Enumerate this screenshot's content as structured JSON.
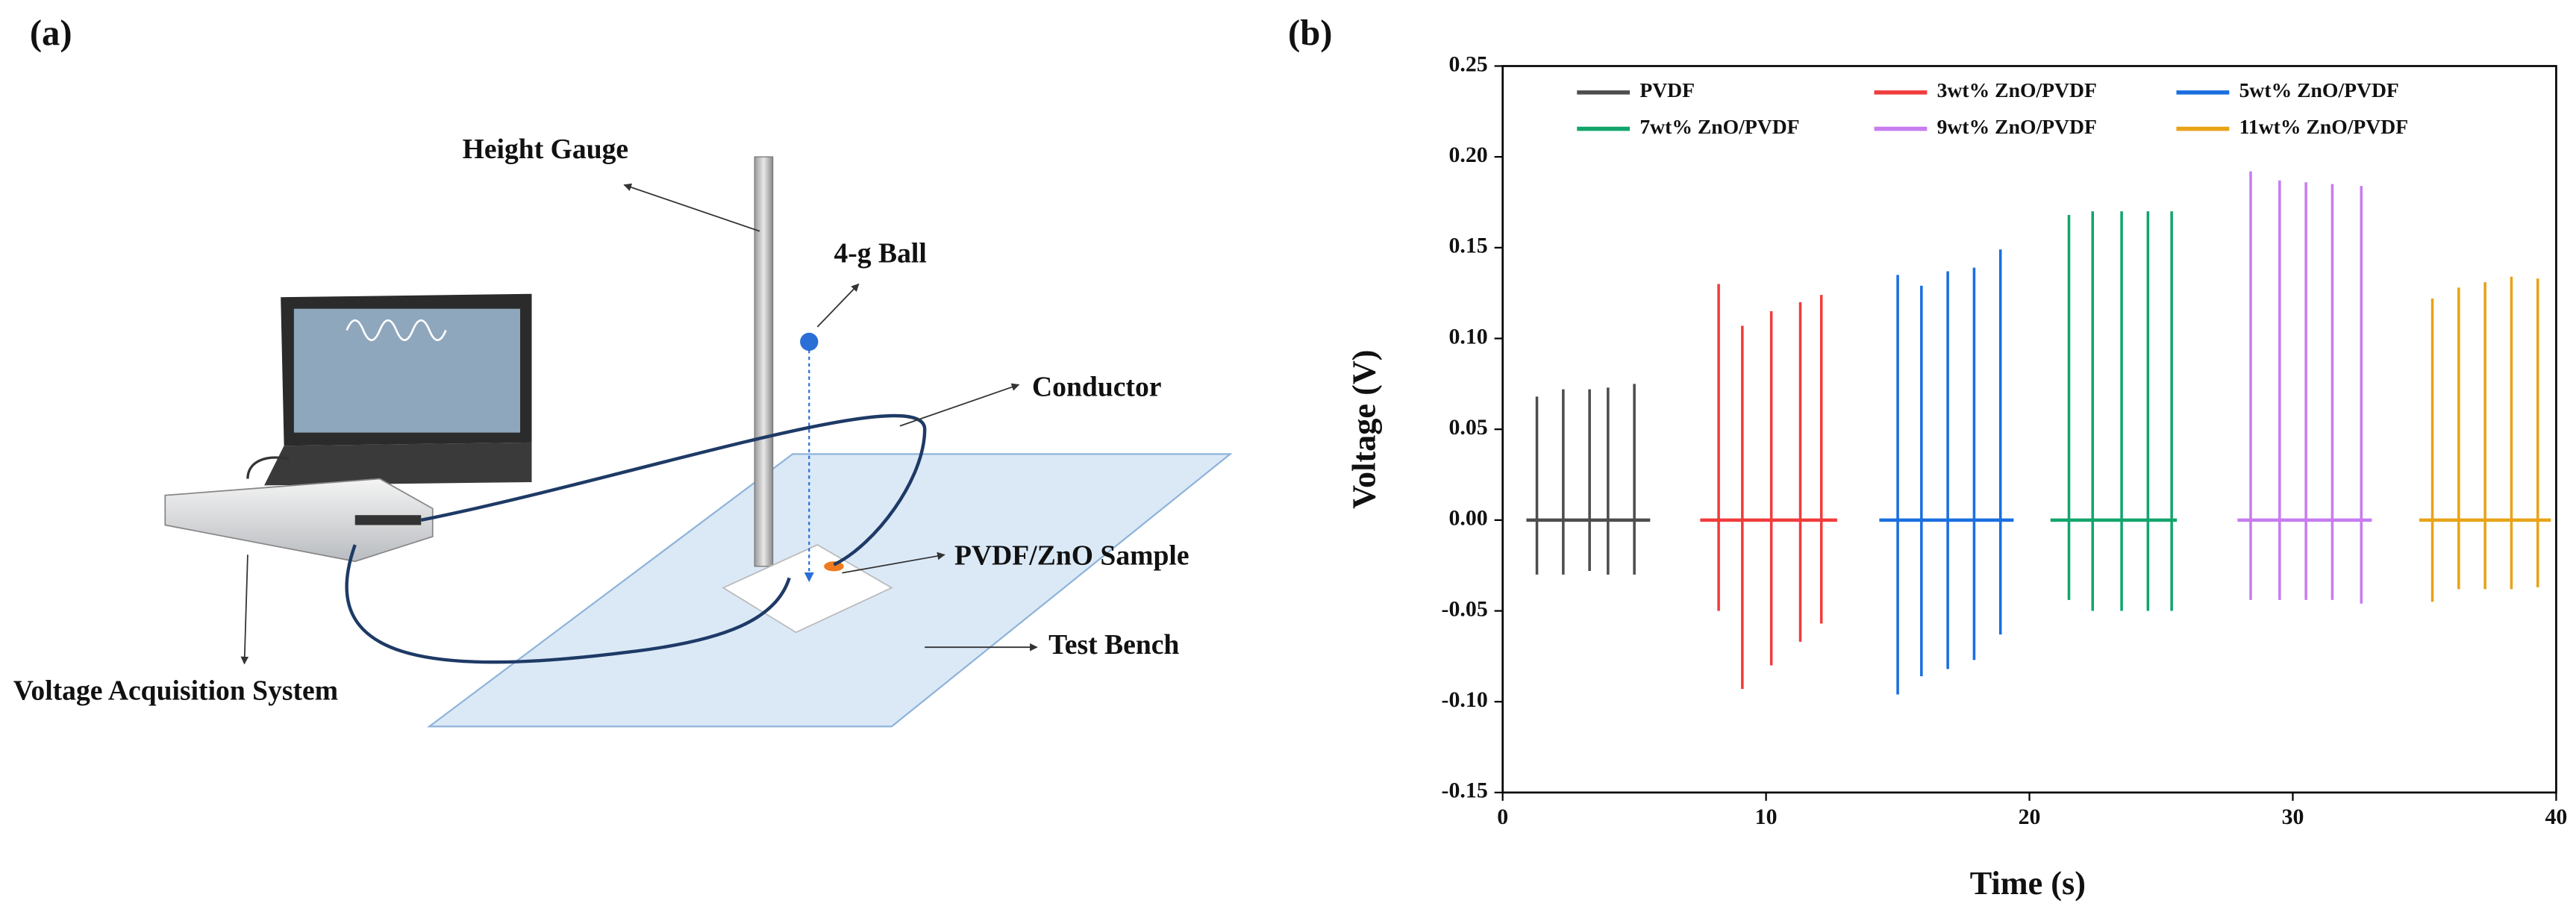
{
  "panel_labels": [
    "(a)",
    "(b)"
  ],
  "diagram": {
    "labels": [
      "Height Gauge",
      "4-g Ball",
      "Conductor",
      "PVDF/ZnO Sample",
      "Test Bench",
      "Voltage Acquisition System"
    ]
  },
  "chart_data": {
    "type": "line",
    "x_label": "Time (s)",
    "y_label": "Voltage (V)",
    "xlim": [
      0,
      40
    ],
    "xticks": [
      0,
      10,
      20,
      30,
      40
    ],
    "ylim": [
      -0.15,
      0.25
    ],
    "yticks": [
      {
        "value": -0.15,
        "label": "-0.15"
      },
      {
        "value": -0.1,
        "label": "-0.10"
      },
      {
        "value": -0.05,
        "label": "-0.05"
      },
      {
        "value": 0,
        "label": "0.00"
      },
      {
        "value": 0.05,
        "label": "0.05"
      },
      {
        "value": 0.1,
        "label": "0.10"
      },
      {
        "value": 0.15,
        "label": "0.15"
      },
      {
        "value": 0.2,
        "label": "0.20"
      },
      {
        "value": 0.25,
        "label": "0.25"
      }
    ],
    "series": [
      {
        "name": "PVDF",
        "color": "#4d4d4d",
        "span": [
          0.9,
          5.6
        ],
        "x": [
          1.3,
          2.3,
          3.3,
          4.0,
          5.0
        ],
        "values": [
          0.068,
          0.072,
          0.072,
          0.073,
          0.075
        ],
        "minima": [
          -0.03,
          -0.03,
          -0.028,
          -0.03,
          -0.03
        ]
      },
      {
        "name": "3wt% ZnO/PVDF",
        "color": "#f03c3c",
        "span": [
          7.5,
          12.7
        ],
        "x": [
          8.2,
          9.1,
          10.2,
          11.3,
          12.1
        ],
        "values": [
          0.13,
          0.107,
          0.115,
          0.12,
          0.124
        ],
        "minima": [
          -0.05,
          -0.093,
          -0.08,
          -0.067,
          -0.057
        ]
      },
      {
        "name": "5wt% ZnO/PVDF",
        "color": "#1a6fdf",
        "span": [
          14.3,
          19.4
        ],
        "x": [
          15.0,
          15.9,
          16.9,
          17.9,
          18.9
        ],
        "values": [
          0.135,
          0.129,
          0.137,
          0.139,
          0.149
        ],
        "minima": [
          -0.096,
          -0.086,
          -0.082,
          -0.077,
          -0.063
        ]
      },
      {
        "name": "7wt% ZnO/PVDF",
        "color": "#12a56b",
        "span": [
          20.8,
          25.6
        ],
        "x": [
          21.5,
          22.4,
          23.5,
          24.5,
          25.4
        ],
        "values": [
          0.168,
          0.17,
          0.17,
          0.17,
          0.17
        ],
        "minima": [
          -0.044,
          -0.05,
          -0.05,
          -0.05,
          -0.05
        ]
      },
      {
        "name": "9wt% ZnO/PVDF",
        "color": "#c77cf0",
        "span": [
          27.9,
          33.0
        ],
        "x": [
          28.4,
          29.5,
          30.5,
          31.5,
          32.6
        ],
        "values": [
          0.192,
          0.187,
          0.186,
          0.185,
          0.184
        ],
        "minima": [
          -0.044,
          -0.044,
          -0.044,
          -0.044,
          -0.046
        ]
      },
      {
        "name": "11wt% ZnO/PVDF",
        "color": "#e8a317",
        "span": [
          34.8,
          39.8
        ],
        "x": [
          35.3,
          36.3,
          37.3,
          38.3,
          39.3
        ],
        "values": [
          0.122,
          0.128,
          0.131,
          0.134,
          0.133
        ],
        "minima": [
          -0.045,
          -0.038,
          -0.038,
          -0.038,
          -0.037
        ]
      }
    ]
  }
}
